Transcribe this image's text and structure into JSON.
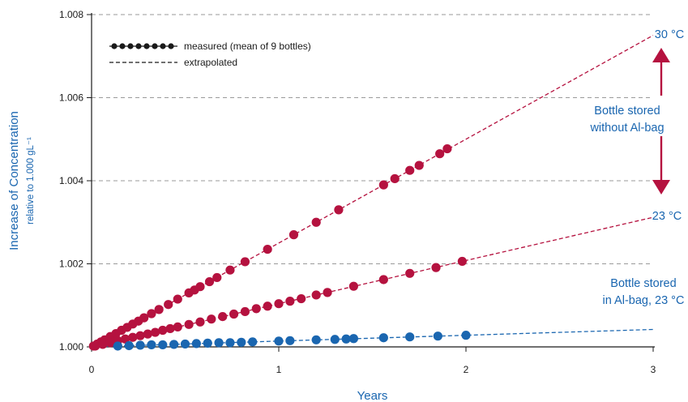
{
  "chart_data": {
    "type": "scatter",
    "xlabel": "Years",
    "ylabel": "Increase of Concentration",
    "ylabel_sub": "relative to 1.000 gL⁻¹",
    "xlim": [
      0,
      3
    ],
    "ylim": [
      1.0,
      1.008
    ],
    "x_ticks": [
      0,
      1,
      2,
      3
    ],
    "x_tick_labels": [
      "0",
      "1",
      "2",
      "3"
    ],
    "y_ticks": [
      1.0,
      1.002,
      1.004,
      1.006,
      1.008
    ],
    "y_tick_labels": [
      "1.000",
      "1.002",
      "1.004",
      "1.006",
      "1.008"
    ],
    "grid": "horizontal dashed",
    "legend": {
      "position": "top-left",
      "items": [
        {
          "label": "measured (mean of 9 bottles)",
          "style": "markers"
        },
        {
          "label": "extrapolated",
          "style": "dashed"
        }
      ]
    },
    "series": [
      {
        "label": "30 °C",
        "color": "#b5123f",
        "slope": 0.0025,
        "fit_x": [
          0,
          3
        ],
        "x": [
          0.01,
          0.03,
          0.05,
          0.07,
          0.1,
          0.13,
          0.16,
          0.19,
          0.22,
          0.25,
          0.28,
          0.32,
          0.36,
          0.41,
          0.46,
          0.52,
          0.55,
          0.58,
          0.63,
          0.67,
          0.74,
          0.82,
          0.94,
          1.08,
          1.2,
          1.32,
          1.56,
          1.62,
          1.7,
          1.75,
          1.86,
          1.9
        ],
        "y": [
          1.00002,
          1.00007,
          1.00012,
          1.00017,
          1.00025,
          1.00032,
          1.0004,
          1.00047,
          1.00055,
          1.00062,
          1.0007,
          1.0008,
          1.0009,
          1.00102,
          1.00115,
          1.0013,
          1.00137,
          1.00145,
          1.00157,
          1.00167,
          1.00185,
          1.00205,
          1.00235,
          1.0027,
          1.003,
          1.0033,
          1.0039,
          1.00405,
          1.00425,
          1.00437,
          1.00465,
          1.00477
        ]
      },
      {
        "label": "23 °C",
        "color": "#b5123f",
        "slope": 0.00104,
        "fit_x": [
          0,
          3
        ],
        "x": [
          0.02,
          0.06,
          0.1,
          0.14,
          0.18,
          0.22,
          0.26,
          0.3,
          0.34,
          0.38,
          0.42,
          0.46,
          0.52,
          0.58,
          0.64,
          0.7,
          0.76,
          0.82,
          0.88,
          0.94,
          1.0,
          1.06,
          1.12,
          1.2,
          1.26,
          1.4,
          1.56,
          1.7,
          1.84,
          1.98
        ],
        "y": [
          1.00002,
          1.00006,
          1.0001,
          1.00015,
          1.00019,
          1.00023,
          1.00027,
          1.00031,
          1.00035,
          1.0004,
          1.00044,
          1.00048,
          1.00054,
          1.0006,
          1.00067,
          1.00073,
          1.00079,
          1.00085,
          1.00092,
          1.00098,
          1.00104,
          1.0011,
          1.00116,
          1.00125,
          1.00131,
          1.00146,
          1.00162,
          1.00177,
          1.00191,
          1.00206
        ]
      },
      {
        "label": "Bottle stored in Al-bag, 23 °C",
        "color": "#1a66b0",
        "slope": 0.00014,
        "fit_x": [
          0,
          3
        ],
        "x": [
          0.14,
          0.2,
          0.26,
          0.32,
          0.38,
          0.44,
          0.5,
          0.56,
          0.62,
          0.68,
          0.74,
          0.8,
          0.86,
          1.0,
          1.06,
          1.2,
          1.3,
          1.36,
          1.4,
          1.56,
          1.7,
          1.85,
          2.0
        ],
        "y": [
          1.00002,
          1.00003,
          1.00004,
          1.00005,
          1.00005,
          1.00006,
          1.00007,
          1.00008,
          1.00009,
          1.0001,
          1.0001,
          1.00011,
          1.00012,
          1.00014,
          1.00015,
          1.00017,
          1.00018,
          1.00019,
          1.0002,
          1.00022,
          1.00024,
          1.00026,
          1.00028
        ]
      }
    ],
    "annotations": [
      {
        "text": "30 °C",
        "color": "#1a66b0",
        "lines": [
          "30 °C"
        ]
      },
      {
        "text": "23 °C",
        "color": "#1a66b0",
        "lines": [
          "23 °C"
        ]
      },
      {
        "text": "Bottle stored without Al-bag",
        "color": "#1a66b0",
        "lines": [
          "Bottle stored",
          "without Al-bag"
        ]
      },
      {
        "text": "Bottle stored in Al-bag, 23 °C",
        "color": "#1a66b0",
        "lines": [
          "Bottle stored",
          "in Al-bag, 23 °C"
        ]
      }
    ],
    "arrow_color": "#b5123f",
    "axis_title_color": "#1a66b0"
  }
}
